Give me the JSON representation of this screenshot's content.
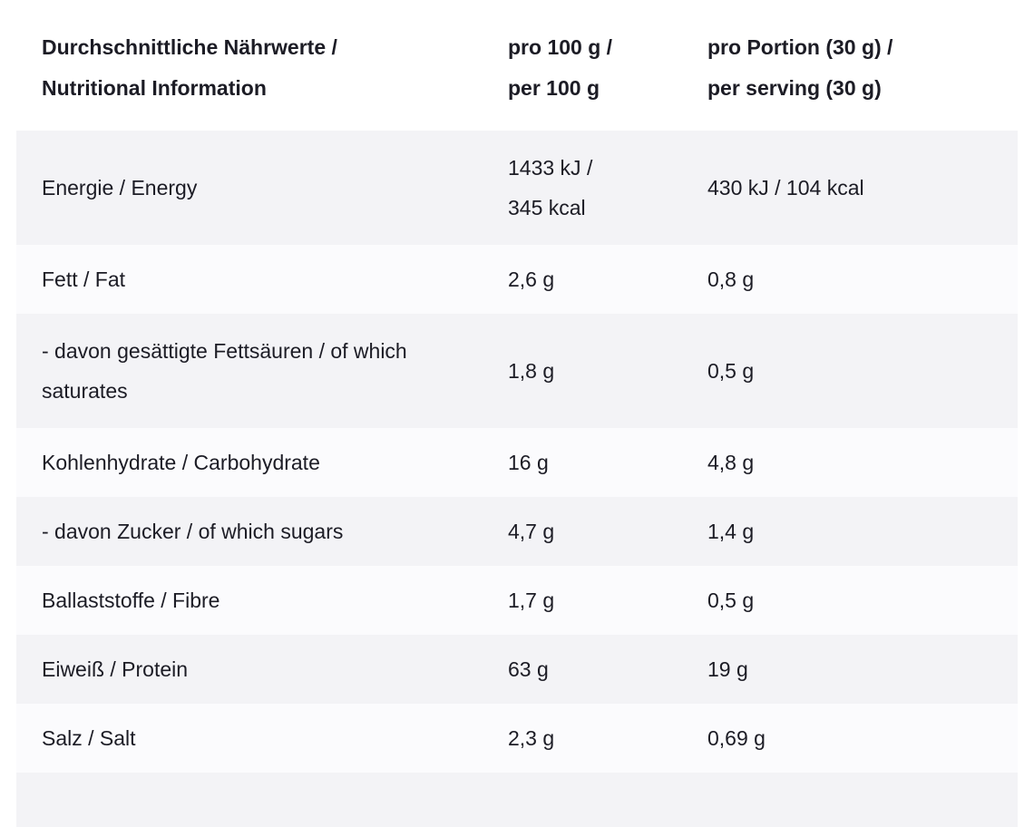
{
  "page": {
    "background": "#ffffff",
    "colors": {
      "stripe_row": "#f3f3f6",
      "alt_row": "#fbfbfd",
      "text": "#1c1c25"
    }
  },
  "table": {
    "header": {
      "nutrients": "Durchschnittliche Nährwerte /\nNutritional Information",
      "per_100g": "pro 100 g /\nper 100 g",
      "per_serving": "pro Portion (30 g) /\nper serving (30 g)"
    },
    "rows": [
      {
        "label": "Energie / Energy",
        "per100": "1433 kJ /\n345 kcal",
        "serving": "430 kJ / 104 kcal"
      },
      {
        "label": "Fett / Fat",
        "per100": "2,6 g",
        "serving": "0,8 g"
      },
      {
        "label": "- davon gesättigte Fettsäuren / of which saturates",
        "per100": "1,8 g",
        "serving": "0,5 g"
      },
      {
        "label": "Kohlenhydrate / Carbohydrate",
        "per100": "16 g",
        "serving": "4,8 g"
      },
      {
        "label": "- davon Zucker / of which sugars",
        "per100": "4,7 g",
        "serving": "1,4 g"
      },
      {
        "label": "Ballaststoffe / Fibre",
        "per100": "1,7 g",
        "serving": "0,5 g"
      },
      {
        "label": "Eiweiß / Protein",
        "per100": "63 g",
        "serving": "19 g"
      },
      {
        "label": "Salz / Salt",
        "per100": "2,3 g",
        "serving": "0,69 g"
      }
    ]
  }
}
